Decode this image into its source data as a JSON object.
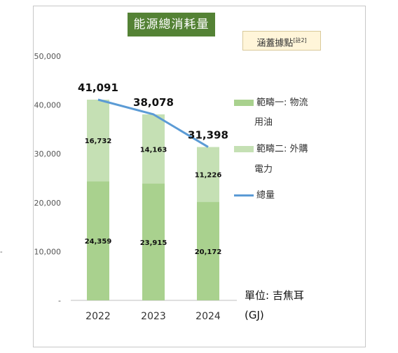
{
  "header": {
    "title": "能源總消耗量",
    "note": "涵蓋據點",
    "note_sup": "[註2]"
  },
  "unit": {
    "line1": "單位: 吉焦耳",
    "line2": "(GJ)"
  },
  "side_mark": "-",
  "legend": [
    {
      "line1": "範疇一: 物流",
      "line2": "用油",
      "color": "#a9d18e"
    },
    {
      "line1": "範疇二: 外購",
      "line2": "電力",
      "color": "#c5e0b4"
    },
    {
      "line1": "總量",
      "line2": "",
      "color": "#5b9bd5"
    }
  ],
  "chart_data": {
    "type": "bar",
    "stacked": true,
    "title": "能源總消耗量",
    "categories": [
      "2022",
      "2023",
      "2024"
    ],
    "series": [
      {
        "name": "範疇一: 物流用油",
        "values": [
          24359,
          23915,
          20172
        ],
        "color": "#a9d18e"
      },
      {
        "name": "範疇二: 外購電力",
        "values": [
          16732,
          14163,
          11226
        ],
        "color": "#c5e0b4"
      }
    ],
    "line_series": {
      "name": "總量",
      "values": [
        41091,
        38078,
        31398
      ],
      "color": "#5b9bd5"
    },
    "data_labels": {
      "scope1": [
        "24,359",
        "23,915",
        "20,172"
      ],
      "scope2": [
        "16,732",
        "14,163",
        "11,226"
      ],
      "total": [
        "41,091",
        "38,078",
        "31,398"
      ]
    },
    "yticks": [
      "-",
      "10,000",
      "20,000",
      "30,000",
      "40,000",
      "50,000"
    ],
    "ylim": [
      0,
      50000
    ],
    "grid": false,
    "legend_position": "right"
  }
}
